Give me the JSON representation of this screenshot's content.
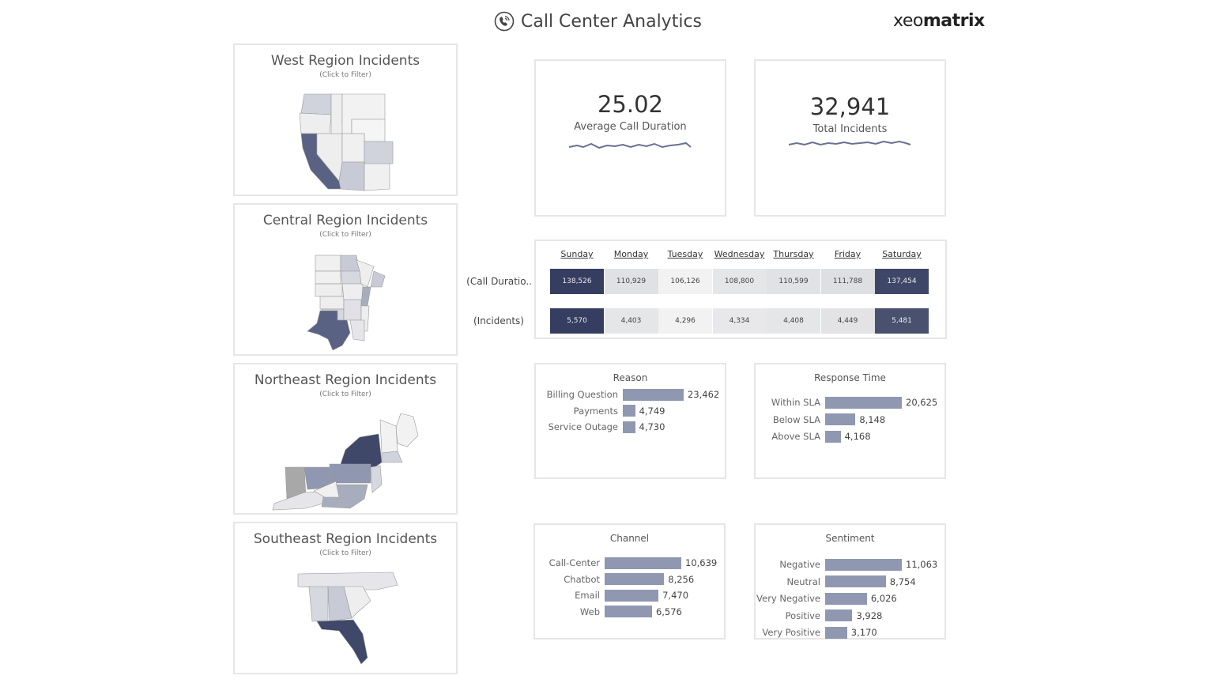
{
  "header": {
    "title": "Call Center Analytics",
    "logo_light": "xeo",
    "logo_bold": "matrix",
    "icon": "phone-icon"
  },
  "regions": [
    {
      "title": "West Region Incidents",
      "sub": "(Click to Filter)"
    },
    {
      "title": "Central Region Incidents",
      "sub": "(Click to Filter)"
    },
    {
      "title": "Northeast Region Incidents",
      "sub": "(Click to Filter)"
    },
    {
      "title": "Southeast Region Incidents",
      "sub": "(Click to Filter)"
    }
  ],
  "kpis": [
    {
      "value": "25.02",
      "label": "Average Call Duration"
    },
    {
      "value": "32,941",
      "label": "Total Incidents"
    }
  ],
  "heatmap": {
    "days": [
      "Sunday",
      "Monday",
      "Tuesday",
      "Wednesday",
      "Thursday",
      "Friday",
      "Saturday"
    ],
    "rows": [
      {
        "label": "(Call Duratio..",
        "values": [
          138526,
          110929,
          106126,
          108800,
          110599,
          111788,
          137454
        ],
        "display": [
          "138,526",
          "110,929",
          "106,126",
          "108,800",
          "110,599",
          "111,788",
          "137,454"
        ]
      },
      {
        "label": "(Incidents)",
        "values": [
          5570,
          4403,
          4296,
          4334,
          4408,
          4449,
          5481
        ],
        "display": [
          "5,570",
          "4,403",
          "4,296",
          "4,334",
          "4,408",
          "4,449",
          "5,481"
        ]
      }
    ],
    "color_low": "#f2f2f2",
    "color_high": "#353e60"
  },
  "reason": {
    "title": "Reason",
    "items": [
      {
        "label": "Billing Question",
        "value": 23462,
        "display": "23,462"
      },
      {
        "label": "Payments",
        "value": 4749,
        "display": "4,749"
      },
      {
        "label": "Service Outage",
        "value": 4730,
        "display": "4,730"
      }
    ]
  },
  "response": {
    "title": "Response Time",
    "items": [
      {
        "label": "Within SLA",
        "value": 20625,
        "display": "20,625"
      },
      {
        "label": "Below SLA",
        "value": 8148,
        "display": "8,148"
      },
      {
        "label": "Above SLA",
        "value": 4168,
        "display": "4,168"
      }
    ]
  },
  "channel": {
    "title": "Channel",
    "items": [
      {
        "label": "Call-Center",
        "value": 10639,
        "display": "10,639"
      },
      {
        "label": "Chatbot",
        "value": 8256,
        "display": "8,256"
      },
      {
        "label": "Email",
        "value": 7470,
        "display": "7,470"
      },
      {
        "label": "Web",
        "value": 6576,
        "display": "6,576"
      }
    ]
  },
  "sentiment": {
    "title": "Sentiment",
    "items": [
      {
        "label": "Negative",
        "value": 11063,
        "display": "11,063"
      },
      {
        "label": "Neutral",
        "value": 8754,
        "display": "8,754"
      },
      {
        "label": "Very Negative",
        "value": 6026,
        "display": "6,026"
      },
      {
        "label": "Positive",
        "value": 3928,
        "display": "3,928"
      },
      {
        "label": "Very Positive",
        "value": 3170,
        "display": "3,170"
      }
    ]
  },
  "colors": {
    "bar": "#8f98b0",
    "map_dark": "#5a6283",
    "map_mid": "#b9bdca",
    "map_light": "#eeeeee"
  }
}
